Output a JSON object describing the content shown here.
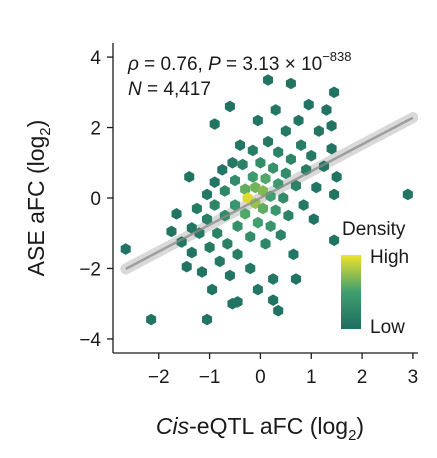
{
  "chart_data": {
    "type": "scatter",
    "subtype": "hexbin-density",
    "xlabel": {
      "italic": "Cis",
      "rest": "-eQTL aFC (log",
      "sub": "2",
      "close": ")"
    },
    "ylabel": {
      "text": "ASE aFC (log",
      "sub": "2",
      "close": ")"
    },
    "xlim": [
      -2.9,
      3.1
    ],
    "ylim": [
      -4.4,
      4.4
    ],
    "x_ticks": [
      -2,
      -1,
      0,
      1,
      2,
      3
    ],
    "x_tick_labels": [
      "−2",
      "−1",
      "0",
      "1",
      "2",
      "3"
    ],
    "y_ticks": [
      -4,
      -2,
      0,
      2,
      4
    ],
    "y_tick_labels": [
      "−4",
      "−2",
      "0",
      "2",
      "4"
    ],
    "annotation": {
      "rho_symbol": "ρ",
      "rho_value": " = 0.76, ",
      "p_symbol": "P",
      "p_value": " = 3.13 × 10",
      "p_exponent": "−838",
      "n_symbol": "N",
      "n_value": " = 4,417"
    },
    "legend": {
      "title": "Density",
      "high_label": "High",
      "low_label": "Low",
      "placement": "right"
    },
    "regression": {
      "slope": 0.76,
      "intercept": 0.0
    },
    "colors": {
      "low": "#1e6e61",
      "mid": "#3f9f6f",
      "high": "#efe22a",
      "line": "#8a8a8a",
      "ribbon": "#d2d2d2"
    },
    "hexbins": [
      [
        -2.65,
        -1.45,
        0.05
      ],
      [
        -2.15,
        -3.45,
        0.05
      ],
      [
        -1.75,
        -0.95,
        0.05
      ],
      [
        -1.65,
        -0.45,
        0.05
      ],
      [
        -1.55,
        -1.25,
        0.08
      ],
      [
        -1.45,
        -1.95,
        0.05
      ],
      [
        -1.35,
        -0.85,
        0.08
      ],
      [
        -1.35,
        -1.55,
        0.05
      ],
      [
        -1.25,
        -0.3,
        0.12
      ],
      [
        -1.2,
        -1.0,
        0.12
      ],
      [
        -1.15,
        -2.1,
        0.05
      ],
      [
        -1.05,
        -0.6,
        0.18
      ],
      [
        -1.05,
        0.1,
        0.1
      ],
      [
        -1.0,
        -1.4,
        0.12
      ],
      [
        -1.05,
        -3.45,
        0.05
      ],
      [
        -0.95,
        -2.6,
        0.05
      ],
      [
        -0.9,
        0.45,
        0.08
      ],
      [
        -0.9,
        -0.2,
        0.22
      ],
      [
        -0.85,
        -1.0,
        0.2
      ],
      [
        -0.8,
        -1.8,
        0.1
      ],
      [
        -0.75,
        0.8,
        0.08
      ],
      [
        -0.7,
        0.2,
        0.25
      ],
      [
        -0.7,
        -0.5,
        0.3
      ],
      [
        -0.65,
        -1.3,
        0.18
      ],
      [
        -0.6,
        -2.2,
        0.08
      ],
      [
        -0.55,
        -3.0,
        0.05
      ],
      [
        -0.55,
        1.0,
        0.1
      ],
      [
        -0.5,
        0.5,
        0.3
      ],
      [
        -0.5,
        -0.2,
        0.42
      ],
      [
        -0.45,
        -0.8,
        0.35
      ],
      [
        -0.45,
        -1.6,
        0.15
      ],
      [
        -0.4,
        1.5,
        0.08
      ],
      [
        -0.35,
        0.95,
        0.2
      ],
      [
        -0.3,
        0.25,
        0.6
      ],
      [
        -0.3,
        -0.45,
        0.55
      ],
      [
        -0.25,
        0.0,
        0.95
      ],
      [
        -0.2,
        -1.1,
        0.3
      ],
      [
        -0.2,
        -2.0,
        0.1
      ],
      [
        -0.15,
        1.35,
        0.15
      ],
      [
        -0.15,
        0.6,
        0.45
      ],
      [
        -0.1,
        -0.15,
        0.75
      ],
      [
        -0.1,
        0.3,
        0.65
      ],
      [
        -0.05,
        -0.7,
        0.5
      ],
      [
        -0.05,
        2.2,
        0.08
      ],
      [
        -0.05,
        -2.6,
        0.08
      ],
      [
        0.0,
        1.0,
        0.3
      ],
      [
        0.05,
        0.2,
        0.7
      ],
      [
        0.05,
        -0.3,
        0.6
      ],
      [
        0.1,
        0.55,
        0.55
      ],
      [
        0.1,
        -1.3,
        0.25
      ],
      [
        0.15,
        1.6,
        0.12
      ],
      [
        0.15,
        3.35,
        0.05
      ],
      [
        0.2,
        0.05,
        0.5
      ],
      [
        0.2,
        -0.8,
        0.4
      ],
      [
        0.25,
        0.85,
        0.35
      ],
      [
        0.25,
        -2.3,
        0.08
      ],
      [
        0.3,
        2.5,
        0.08
      ],
      [
        0.3,
        -0.35,
        0.4
      ],
      [
        0.35,
        0.4,
        0.45
      ],
      [
        0.35,
        1.3,
        0.2
      ],
      [
        0.4,
        -1.05,
        0.2
      ],
      [
        0.45,
        0.0,
        0.3
      ],
      [
        0.5,
        0.7,
        0.3
      ],
      [
        0.5,
        1.9,
        0.12
      ],
      [
        0.55,
        -0.5,
        0.2
      ],
      [
        0.6,
        1.1,
        0.22
      ],
      [
        0.6,
        3.25,
        0.05
      ],
      [
        0.65,
        -1.6,
        0.08
      ],
      [
        0.7,
        0.35,
        0.2
      ],
      [
        0.75,
        2.2,
        0.08
      ],
      [
        0.8,
        1.5,
        0.15
      ],
      [
        0.85,
        -0.2,
        0.1
      ],
      [
        0.9,
        0.8,
        0.15
      ],
      [
        0.95,
        2.65,
        0.05
      ],
      [
        1.0,
        1.2,
        0.12
      ],
      [
        1.05,
        -0.6,
        0.05
      ],
      [
        1.1,
        0.3,
        0.08
      ],
      [
        1.15,
        1.9,
        0.08
      ],
      [
        1.25,
        0.9,
        0.08
      ],
      [
        1.3,
        2.5,
        0.05
      ],
      [
        1.4,
        1.4,
        0.05
      ],
      [
        1.45,
        -1.2,
        0.05
      ],
      [
        1.5,
        0.6,
        0.05
      ],
      [
        1.45,
        3.0,
        0.05
      ],
      [
        -0.9,
        2.1,
        0.05
      ],
      [
        -0.6,
        2.6,
        0.05
      ],
      [
        -1.4,
        0.6,
        0.05
      ],
      [
        0.35,
        -3.2,
        0.05
      ],
      [
        0.25,
        -2.9,
        0.05
      ],
      [
        -0.45,
        -2.95,
        0.05
      ],
      [
        1.4,
        2.05,
        0.05
      ],
      [
        1.45,
        0.1,
        0.05
      ],
      [
        2.9,
        0.1,
        0.05
      ],
      [
        0.7,
        -2.3,
        0.05
      ]
    ]
  }
}
